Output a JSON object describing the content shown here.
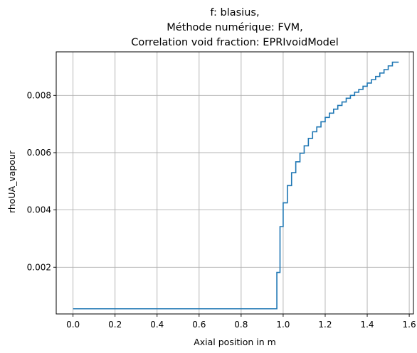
{
  "chart_data": {
    "type": "line",
    "step": true,
    "title_lines": [
      "f: blasius,",
      "Méthode numérique: FVM,",
      "Correlation void fraction: EPRIvoidModel"
    ],
    "xlabel": "Axial position in m",
    "ylabel": "rhoUA_vapour",
    "xlim": [
      -0.08,
      1.62
    ],
    "ylim": [
      0.00037,
      0.00952
    ],
    "xticks": [
      0.0,
      0.2,
      0.4,
      0.6,
      0.8,
      1.0,
      1.2,
      1.4,
      1.6
    ],
    "xtick_labels": [
      "0.0",
      "0.2",
      "0.4",
      "0.6",
      "0.8",
      "1.0",
      "1.2",
      "1.4",
      "1.6"
    ],
    "yticks": [
      0.002,
      0.004,
      0.006,
      0.008
    ],
    "ytick_labels": [
      "0.002",
      "0.004",
      "0.006",
      "0.008"
    ],
    "grid": true,
    "series_color": "#1f77b4",
    "series": [
      {
        "x": [
          0.0,
          0.97,
          0.985,
          1.0,
          1.02,
          1.04,
          1.06,
          1.08,
          1.1,
          1.12,
          1.14,
          1.16,
          1.18,
          1.2,
          1.22,
          1.24,
          1.26,
          1.28,
          1.3,
          1.32,
          1.34,
          1.36,
          1.38,
          1.4,
          1.42,
          1.44,
          1.46,
          1.48,
          1.5,
          1.52,
          1.54,
          1.55
        ],
        "y": [
          0.00055,
          0.00182,
          0.00342,
          0.00425,
          0.00485,
          0.0053,
          0.00568,
          0.00598,
          0.00624,
          0.0065,
          0.00673,
          0.0069,
          0.00708,
          0.00723,
          0.00738,
          0.00752,
          0.00765,
          0.00777,
          0.0079,
          0.008,
          0.00811,
          0.00821,
          0.00832,
          0.00843,
          0.00855,
          0.00866,
          0.00878,
          0.0089,
          0.00903,
          0.00916,
          0.00916,
          0.00916
        ]
      }
    ]
  }
}
